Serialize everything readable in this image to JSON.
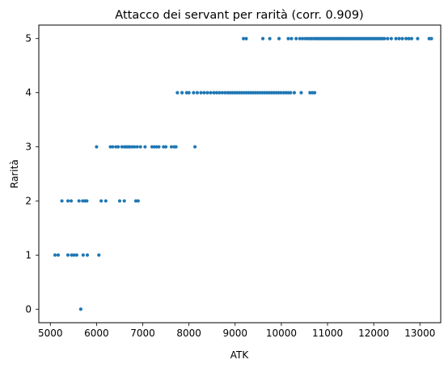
{
  "chart_data": {
    "type": "scatter",
    "title": "Attacco dei servant per rarità (corr. 0.909)",
    "xlabel": "ATK",
    "ylabel": "Rarità",
    "xlim": [
      4750,
      13450
    ],
    "ylim": [
      -0.25,
      5.25
    ],
    "x_ticks": [
      5000,
      6000,
      7000,
      8000,
      9000,
      10000,
      11000,
      12000,
      13000
    ],
    "y_ticks": [
      0,
      1,
      2,
      3,
      4,
      5
    ],
    "grid": false,
    "legend": "none",
    "marker_color": "#1f77b4",
    "points_by_rarity": [
      {
        "rarity": 0,
        "atk": [
          5658
        ]
      },
      {
        "rarity": 1,
        "atk": [
          5100,
          5170,
          5380,
          5460,
          5510,
          5570,
          5710,
          5800,
          6050
        ]
      },
      {
        "rarity": 2,
        "atk": [
          5250,
          5380,
          5450,
          5620,
          5700,
          5750,
          5790,
          6100,
          6200,
          6500,
          6600,
          6850,
          6900
        ]
      },
      {
        "rarity": 3,
        "atk": [
          6000,
          6300,
          6350,
          6420,
          6470,
          6550,
          6600,
          6640,
          6680,
          6720,
          6770,
          6820,
          6880,
          6950,
          7050,
          7200,
          7250,
          7300,
          7350,
          7450,
          7500,
          7620,
          7680,
          7720,
          8130
        ]
      },
      {
        "rarity": 4,
        "atk": [
          7750,
          7850,
          7950,
          8000,
          8100,
          8180,
          8260,
          8330,
          8400,
          8470,
          8540,
          8600,
          8660,
          8720,
          8780,
          8840,
          8890,
          8940,
          8990,
          9040,
          9090,
          9140,
          9190,
          9240,
          9290,
          9340,
          9390,
          9440,
          9490,
          9540,
          9590,
          9640,
          9690,
          9740,
          9790,
          9840,
          9890,
          9940,
          9990,
          10050,
          10100,
          10150,
          10200,
          10280,
          10430,
          10620,
          10670,
          10720
        ]
      },
      {
        "rarity": 5,
        "atk": [
          9180,
          9240,
          9600,
          9750,
          9950,
          10150,
          10220,
          10320,
          10400,
          10460,
          10520,
          10570,
          10620,
          10660,
          10710,
          10750,
          10790,
          10830,
          10870,
          10910,
          10950,
          10990,
          11030,
          11070,
          11110,
          11150,
          11190,
          11230,
          11270,
          11310,
          11350,
          11390,
          11430,
          11470,
          11510,
          11550,
          11590,
          11630,
          11670,
          11710,
          11750,
          11790,
          11830,
          11870,
          11910,
          11950,
          11990,
          12030,
          12070,
          12110,
          12150,
          12190,
          12230,
          12300,
          12380,
          12480,
          12550,
          12620,
          12700,
          12760,
          12820,
          12950,
          13200,
          13250
        ]
      }
    ]
  }
}
